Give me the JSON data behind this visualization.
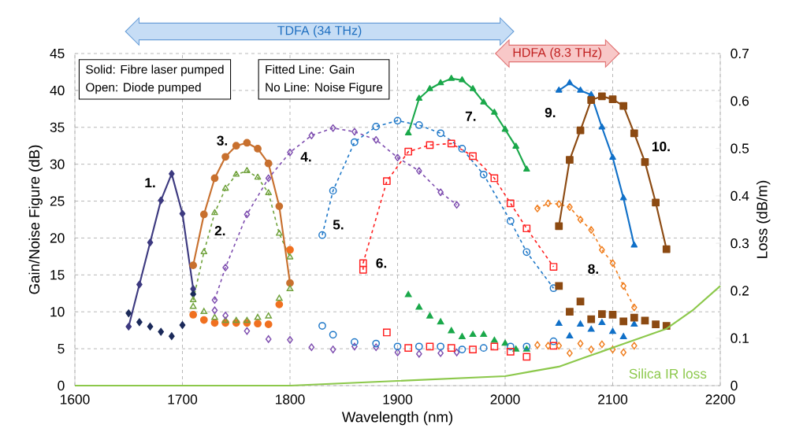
{
  "chart_data": {
    "type": "line",
    "xlabel": "Wavelength (nm)",
    "ylabel": "Gain/Noise Figure (dB)",
    "y2label": "Loss (dB/m)",
    "xlim": [
      1600,
      2200
    ],
    "xticks": [
      1600,
      1700,
      1800,
      1900,
      2000,
      2100,
      2200
    ],
    "ylim": [
      0,
      45
    ],
    "yticks": [
      0,
      5,
      10,
      15,
      20,
      25,
      30,
      35,
      40,
      45
    ],
    "y2lim": [
      0,
      0.7
    ],
    "y2ticks": [
      0,
      0.1,
      0.2,
      0.3,
      0.4,
      0.5,
      0.6,
      0.7
    ],
    "grid": true,
    "series": [
      {
        "color": "#3d3a80",
        "marker": "diamond",
        "line_style": "solid",
        "x": [
          1650,
          1660,
          1670,
          1680,
          1690,
          1700,
          1710
        ],
        "values": [
          8.0,
          13.7,
          19.4,
          25.1,
          28.7,
          23.3,
          13.1
        ]
      },
      {
        "type": "scatter",
        "color": "#1b2a5a",
        "marker": "diamond",
        "x": [
          1650,
          1660,
          1670,
          1680,
          1690,
          1700,
          1710
        ],
        "values": [
          9.8,
          8.6,
          8.0,
          7.3,
          6.7,
          8.2,
          12.4
        ]
      },
      {
        "color": "#70a23c",
        "marker": "triangle",
        "line_style": "dashed",
        "x": [
          1710,
          1720,
          1730,
          1740,
          1750,
          1760,
          1770,
          1780,
          1790,
          1800
        ],
        "values": [
          11.6,
          18.1,
          23.4,
          26.7,
          28.6,
          29.1,
          28.2,
          26.1,
          20.6,
          17.4
        ]
      },
      {
        "type": "scatter",
        "color": "#70a23c",
        "marker": "triangle",
        "x": [
          1710,
          1720,
          1730,
          1740,
          1750,
          1760,
          1770,
          1780,
          1790,
          1800
        ],
        "values": [
          10.7,
          10.0,
          9.2,
          8.8,
          8.8,
          8.8,
          9.2,
          9.4,
          11.8,
          13.1
        ]
      },
      {
        "color": "#c8702e",
        "marker": "circle",
        "line_style": "solid",
        "x": [
          1710,
          1720,
          1730,
          1740,
          1750,
          1760,
          1770,
          1780,
          1790,
          1800
        ],
        "values": [
          16.3,
          23.2,
          28.1,
          31.0,
          32.5,
          32.9,
          32.1,
          30.1,
          24.3,
          13.9
        ]
      },
      {
        "type": "scatter",
        "color": "#f07020",
        "marker": "circle",
        "x": [
          1710,
          1720,
          1730,
          1740,
          1750,
          1760,
          1770,
          1780,
          1790,
          1800
        ],
        "values": [
          9.6,
          8.9,
          8.5,
          8.5,
          8.5,
          8.5,
          8.4,
          8.3,
          11.0,
          18.4
        ]
      },
      {
        "color": "#7f4fb0",
        "marker": "diamond",
        "line_style": "dashed",
        "x": [
          1730,
          1740,
          1760,
          1780,
          1800,
          1820,
          1840,
          1860,
          1880,
          1900,
          1920,
          1940,
          1955
        ],
        "values": [
          11.6,
          16.0,
          23.2,
          28.1,
          31.6,
          33.9,
          34.9,
          34.4,
          33.3,
          30.9,
          29.1,
          26.2,
          24.5
        ]
      },
      {
        "type": "scatter",
        "color": "#7f4fb0",
        "marker": "diamond",
        "x": [
          1730,
          1740,
          1760,
          1780,
          1800,
          1820,
          1840,
          1860,
          1880,
          1900,
          1920,
          1940,
          1955
        ],
        "values": [
          10.2,
          9.5,
          7.4,
          6.3,
          6.2,
          5.2,
          4.9,
          5.3,
          5.2,
          4.5,
          4.3,
          4.4,
          4.5
        ]
      },
      {
        "color": "#1f78c8",
        "marker": "circle",
        "line_style": "dashed",
        "x": [
          1830,
          1840,
          1860,
          1880,
          1900,
          1920,
          1940,
          1960,
          1980,
          2005,
          2020,
          2045
        ],
        "values": [
          20.4,
          26.4,
          33.0,
          35.1,
          35.9,
          35.3,
          34.2,
          32.1,
          28.6,
          22.3,
          18.1,
          13.2
        ]
      },
      {
        "type": "scatter",
        "color": "#1f78c8",
        "marker": "circle",
        "x": [
          1830,
          1840,
          1860,
          1880,
          1900,
          1920,
          1940,
          1960,
          1980,
          2005,
          2020,
          2045
        ],
        "values": [
          8.1,
          6.9,
          5.9,
          5.7,
          5.3,
          5.3,
          5.3,
          4.9,
          5.1,
          5.3,
          5.3,
          6.0
        ]
      },
      {
        "color": "#ff2020",
        "marker": "square",
        "line_style": "dashed",
        "x": [
          1868,
          1868,
          1890,
          1910,
          1930,
          1950,
          1970,
          1990,
          2005,
          2020,
          2045
        ],
        "values": [
          15.7,
          16.6,
          27.7,
          31.7,
          32.6,
          32.8,
          31.1,
          28.1,
          24.7,
          21.3,
          16.1
        ]
      },
      {
        "type": "scatter",
        "color": "#ff2020",
        "marker": "square",
        "x": [
          1890,
          1910,
          1930,
          1950,
          1970,
          1990,
          2005,
          2020,
          2045
        ],
        "values": [
          7.2,
          5.1,
          5.3,
          5.1,
          4.9,
          5.3,
          4.6,
          3.9,
          5.4
        ]
      },
      {
        "color": "#1aa84a",
        "marker": "triangle",
        "line_style": "solid",
        "x": [
          1910,
          1920,
          1930,
          1940,
          1950,
          1960,
          1970,
          1980,
          1990,
          2000,
          2010,
          2020
        ],
        "values": [
          34.2,
          38.9,
          40.2,
          41.0,
          41.6,
          41.4,
          40.2,
          38.4,
          37.0,
          34.7,
          32.4,
          29.3
        ]
      },
      {
        "type": "scatter",
        "color": "#1aa84a",
        "marker": "triangle",
        "x": [
          1910,
          1920,
          1930,
          1940,
          1950,
          1960,
          1970,
          1980,
          1990,
          2000,
          2010,
          2020
        ],
        "values": [
          12.3,
          10.6,
          9.4,
          8.6,
          7.4,
          6.6,
          6.9,
          6.9,
          6.1,
          5.7,
          4.9,
          4.9
        ]
      },
      {
        "color": "#f07f20",
        "marker": "diamond",
        "line_style": "dashed",
        "x": [
          2030,
          2040,
          2050,
          2060,
          2070,
          2080,
          2090,
          2100,
          2110,
          2120
        ],
        "values": [
          24.0,
          24.7,
          24.6,
          24.2,
          22.5,
          21.1,
          18.4,
          16.6,
          13.5,
          10.6
        ]
      },
      {
        "type": "scatter",
        "color": "#f07f20",
        "marker": "diamond",
        "x": [
          2030,
          2040,
          2050,
          2060,
          2070,
          2080,
          2090,
          2100,
          2110,
          2120
        ],
        "values": [
          5.5,
          5.4,
          5.4,
          4.4,
          5.7,
          4.9,
          5.6,
          4.9,
          4.5,
          5.4
        ]
      },
      {
        "color": "#1070c8",
        "marker": "triangle",
        "line_style": "solid",
        "x": [
          2050,
          2060,
          2070,
          2080,
          2090,
          2100,
          2110,
          2120
        ],
        "values": [
          40.0,
          41.0,
          40.0,
          39.4,
          35.0,
          30.9,
          25.4,
          19.0
        ]
      },
      {
        "type": "scatter",
        "color": "#1070c8",
        "marker": "triangle",
        "x": [
          2050,
          2060,
          2070,
          2080,
          2090,
          2100,
          2110,
          2120
        ],
        "values": [
          8.4,
          6.7,
          8.3,
          7.6,
          8.5,
          7.3,
          6.6,
          8.3
        ]
      },
      {
        "color": "#8c4a12",
        "marker": "square",
        "line_style": "solid",
        "x": [
          2050,
          2060,
          2070,
          2080,
          2090,
          2100,
          2110,
          2120,
          2130,
          2140,
          2150
        ],
        "values": [
          21.6,
          30.6,
          34.6,
          38.7,
          39.2,
          38.8,
          37.9,
          34.2,
          30.3,
          24.8,
          18.5
        ]
      },
      {
        "type": "scatter",
        "color": "#8c4a12",
        "marker": "square",
        "x": [
          2050,
          2060,
          2070,
          2080,
          2090,
          2100,
          2110,
          2120,
          2130,
          2140,
          2150
        ],
        "values": [
          13.5,
          10.0,
          11.4,
          9.0,
          9.7,
          9.6,
          8.7,
          9.2,
          8.8,
          8.3,
          8.1
        ]
      },
      {
        "name": "Silica IR loss",
        "axis": "y2",
        "color": "#8cc84b",
        "marker": "none",
        "line_style": "solid",
        "x": [
          1600,
          1700,
          1800,
          1900,
          2000,
          2025,
          2050,
          2075,
          2100,
          2125,
          2150,
          2175,
          2200
        ],
        "values": [
          0.0,
          0.0,
          0.0,
          0.01,
          0.02,
          0.03,
          0.04,
          0.06,
          0.08,
          0.1,
          0.12,
          0.16,
          0.21
        ]
      }
    ],
    "annotations": [
      "Solid: Fibre laser pumped",
      "Open: Diode pumped",
      "Fitted Line: Gain",
      "No Line: Noise Figure",
      "TDFA (34 THz)",
      "HDFA (8.3 THz)",
      "1.",
      "2.",
      "3.",
      "4.",
      "5.",
      "6.",
      "7.",
      "8.",
      "9.",
      "10."
    ]
  }
}
